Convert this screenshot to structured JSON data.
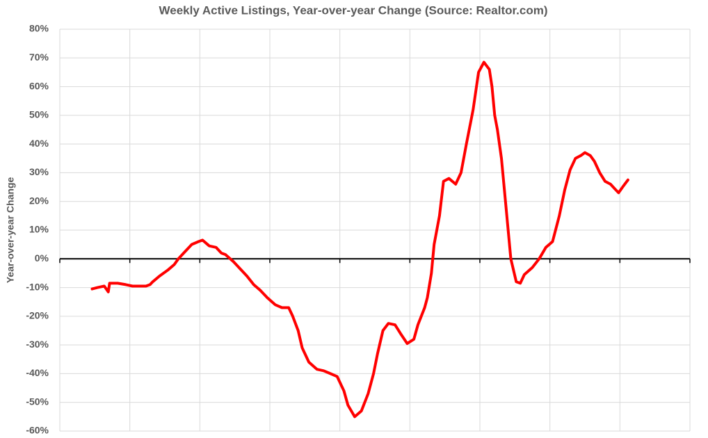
{
  "chart_data": {
    "type": "line",
    "title": "Weekly Active Listings, Year-over-year Change (Source: Realtor.com)",
    "y_label": "Year-over-year Change",
    "x": [
      24,
      28,
      33,
      36,
      37,
      43,
      49,
      54,
      59,
      64,
      67,
      69,
      74,
      80,
      85,
      88,
      92,
      98,
      103,
      106,
      111,
      116,
      120,
      123,
      129,
      134,
      139,
      144,
      149,
      154,
      160,
      165,
      170,
      173,
      177,
      180,
      185,
      191,
      196,
      201,
      206,
      211,
      214,
      219,
      224,
      229,
      233,
      236,
      240,
      244,
      249,
      253,
      258,
      263,
      266,
      271,
      273,
      276,
      278,
      282,
      285,
      289,
      294,
      298,
      302,
      307,
      311,
      315,
      319,
      321,
      323,
      325,
      328,
      331,
      335,
      339,
      342,
      345,
      351,
      356,
      361,
      366,
      371,
      375,
      379,
      383,
      387,
      390,
      394,
      397,
      401,
      405,
      409,
      413,
      415,
      418,
      422
    ],
    "series": [
      {
        "name": "Year-over-year Change",
        "color": "#ff0000",
        "values": [
          -10.5,
          -10,
          -9.5,
          -11.5,
          -8.5,
          -8.5,
          -9,
          -9.5,
          -9.5,
          -9.5,
          -9,
          -8,
          -6,
          -4,
          -2,
          0,
          2,
          5,
          6,
          6.5,
          4.5,
          4,
          2,
          1.5,
          -1,
          -3.5,
          -6,
          -9,
          -11,
          -13.5,
          -16,
          -17,
          -17,
          -20,
          -25,
          -31,
          -36,
          -38.5,
          -39,
          -40,
          -41,
          -46,
          -51,
          -55,
          -53,
          -47,
          -40,
          -33,
          -25,
          -22.5,
          -23,
          -26,
          -29.5,
          -28,
          -23,
          -17,
          -13.5,
          -5,
          5,
          15,
          27,
          28,
          26,
          30,
          40,
          52,
          65,
          68.5,
          66,
          60,
          50,
          45,
          35,
          20,
          0,
          -8,
          -8.5,
          -5.5,
          -3,
          0,
          4,
          6,
          15,
          24,
          31,
          35,
          36,
          37,
          36,
          34,
          30,
          27,
          26,
          24,
          23,
          25,
          27.5
        ]
      }
    ],
    "xlim": [
      0,
      468
    ],
    "ylim": [
      -60,
      80
    ],
    "yticks": [
      {
        "value": -60,
        "label": "-60%"
      },
      {
        "value": -50,
        "label": "-50%"
      },
      {
        "value": -40,
        "label": "-40%"
      },
      {
        "value": -30,
        "label": "-30%"
      },
      {
        "value": -20,
        "label": "-20%"
      },
      {
        "value": -10,
        "label": "-10%"
      },
      {
        "value": 0,
        "label": "0%"
      },
      {
        "value": 10,
        "label": "10%"
      },
      {
        "value": 20,
        "label": "20%"
      },
      {
        "value": 30,
        "label": "30%"
      },
      {
        "value": 40,
        "label": "40%"
      },
      {
        "value": 50,
        "label": "50%"
      },
      {
        "value": 60,
        "label": "60%"
      },
      {
        "value": 70,
        "label": "70%"
      },
      {
        "value": 80,
        "label": "80%"
      }
    ],
    "grid": true
  }
}
